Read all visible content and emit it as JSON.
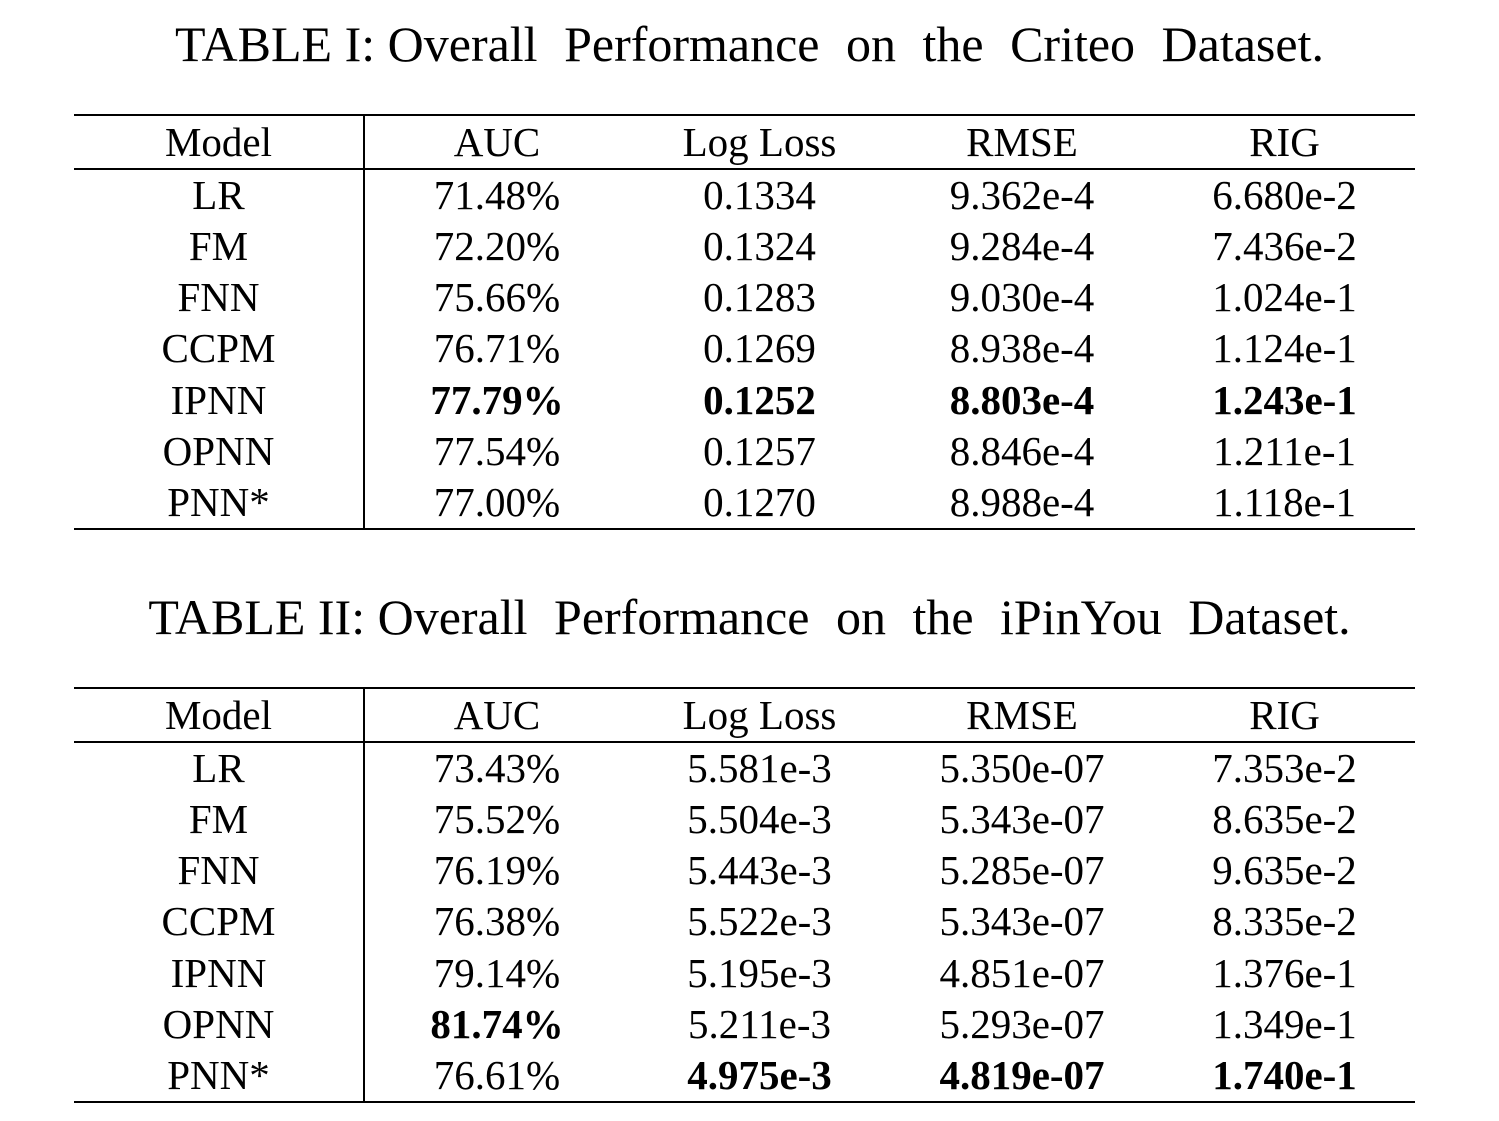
{
  "tables": [
    {
      "caption_label": "TABLE I:",
      "caption_text": "Overall Performance on the Criteo Dataset.",
      "headers": [
        "Model",
        "AUC",
        "Log Loss",
        "RMSE",
        "RIG"
      ],
      "rows": [
        [
          "LR",
          "71.48%",
          "0.1334",
          "9.362e-4",
          "6.680e-2"
        ],
        [
          "FM",
          "72.20%",
          "0.1324",
          "9.284e-4",
          "7.436e-2"
        ],
        [
          "FNN",
          "75.66%",
          "0.1283",
          "9.030e-4",
          "1.024e-1"
        ],
        [
          "CCPM",
          "76.71%",
          "0.1269",
          "8.938e-4",
          "1.124e-1"
        ],
        [
          "IPNN",
          "77.79%",
          "0.1252",
          "8.803e-4",
          "1.243e-1"
        ],
        [
          "OPNN",
          "77.54%",
          "0.1257",
          "8.846e-4",
          "1.211e-1"
        ],
        [
          "PNN*",
          "77.00%",
          "0.1270",
          "8.988e-4",
          "1.118e-1"
        ]
      ],
      "bold_cells": [
        [
          4,
          1
        ],
        [
          4,
          2
        ],
        [
          4,
          3
        ],
        [
          4,
          4
        ]
      ]
    },
    {
      "caption_label": "TABLE II:",
      "caption_text": "Overall Performance on the iPinYou Dataset.",
      "headers": [
        "Model",
        "AUC",
        "Log Loss",
        "RMSE",
        "RIG"
      ],
      "rows": [
        [
          "LR",
          "73.43%",
          "5.581e-3",
          "5.350e-07",
          "7.353e-2"
        ],
        [
          "FM",
          "75.52%",
          "5.504e-3",
          "5.343e-07",
          "8.635e-2"
        ],
        [
          "FNN",
          "76.19%",
          "5.443e-3",
          "5.285e-07",
          "9.635e-2"
        ],
        [
          "CCPM",
          "76.38%",
          "5.522e-3",
          "5.343e-07",
          "8.335e-2"
        ],
        [
          "IPNN",
          "79.14%",
          "5.195e-3",
          "4.851e-07",
          "1.376e-1"
        ],
        [
          "OPNN",
          "81.74%",
          "5.211e-3",
          "5.293e-07",
          "1.349e-1"
        ],
        [
          "PNN*",
          "76.61%",
          "4.975e-3",
          "4.819e-07",
          "1.740e-1"
        ]
      ],
      "bold_cells": [
        [
          5,
          1
        ],
        [
          6,
          2
        ],
        [
          6,
          3
        ],
        [
          6,
          4
        ]
      ]
    }
  ]
}
